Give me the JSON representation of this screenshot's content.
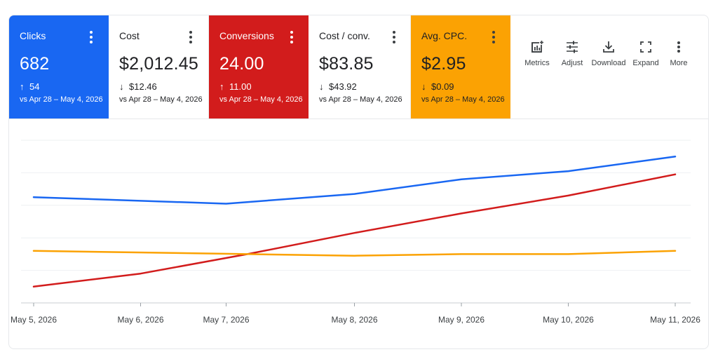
{
  "metrics": [
    {
      "label": "Clicks",
      "value": "682",
      "arrow": "↑",
      "change": "54",
      "compare": "vs Apr 28 – May 4, 2026",
      "color": "#1967f2"
    },
    {
      "label": "Cost",
      "value": "$2,012.45",
      "arrow": "↓",
      "change": "$12.46",
      "compare": "vs Apr 28 – May 4, 2026",
      "color": "#ffffff"
    },
    {
      "label": "Conversions",
      "value": "24.00",
      "arrow": "↑",
      "change": "11.00",
      "compare": "vs Apr 28 – May 4, 2026",
      "color": "#d21c1c"
    },
    {
      "label": "Cost / conv.",
      "value": "$83.85",
      "arrow": "↓",
      "change": "$43.92",
      "compare": "vs Apr 28 – May 4, 2026",
      "color": "#ffffff"
    },
    {
      "label": "Avg. CPC.",
      "value": "$2.95",
      "arrow": "↓",
      "change": "$0.09",
      "compare": "vs Apr 28 – May 4, 2026",
      "color": "#fba203"
    }
  ],
  "toolbar": {
    "metrics_label": "Metrics",
    "adjust_label": "Adjust",
    "download_label": "Download",
    "expand_label": "Expand",
    "more_label": "More"
  },
  "chart_data": {
    "type": "line",
    "categories": [
      "May 5, 2026",
      "May 6, 2026",
      "May 7, 2026",
      "May 8, 2026",
      "May 9, 2026",
      "May 10, 2026",
      "May 11, 2026"
    ],
    "x_positions": [
      0,
      1,
      1.8,
      3,
      4,
      5,
      6
    ],
    "ylim": [
      0,
      100
    ],
    "grid": true,
    "legend": "none",
    "series": [
      {
        "metric": "Clicks",
        "color": "#1967f2",
        "x": [
          0,
          1.8,
          3,
          4,
          5,
          6
        ],
        "values": [
          65,
          61,
          67,
          76,
          81,
          90
        ]
      },
      {
        "metric": "Conversions",
        "color": "#d21c1c",
        "x": [
          0,
          1,
          2,
          3,
          4,
          5,
          6
        ],
        "values": [
          10,
          18,
          30,
          43,
          55,
          66,
          79
        ]
      },
      {
        "metric": "Avg. CPC.",
        "color": "#fba203",
        "x": [
          0,
          2,
          3,
          4,
          5,
          6
        ],
        "values": [
          32,
          30,
          29,
          30,
          30,
          32
        ]
      }
    ]
  }
}
